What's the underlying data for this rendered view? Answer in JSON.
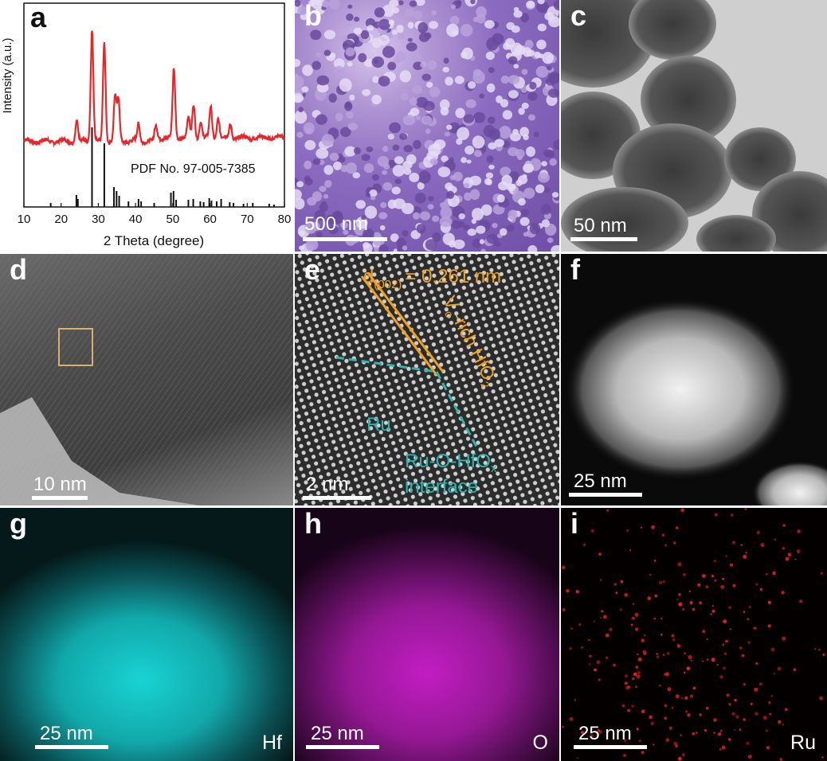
{
  "panels": {
    "a": {
      "label": "a"
    },
    "b": {
      "label": "b",
      "scale": "500 nm"
    },
    "c": {
      "label": "c",
      "scale": "50 nm"
    },
    "d": {
      "label": "d",
      "scale": "10 nm"
    },
    "e": {
      "label": "e",
      "scale": "2 nm",
      "d_main": "d",
      "d_sub": "(002)",
      "d_value": "= 0.261 nm",
      "vo_main": "V",
      "vo_sub": "o",
      "vo_rest": "-rich HfO",
      "vo_sub2": "2",
      "ru": "Ru",
      "iface_line1_main": "Ru-O-HfO",
      "iface_line1_sub": "x",
      "iface_line2": "interface"
    },
    "f": {
      "label": "f",
      "scale": "25 nm"
    },
    "g": {
      "label": "g",
      "scale": "25 nm",
      "element": "Hf"
    },
    "h": {
      "label": "h",
      "scale": "25 nm",
      "element": "O"
    },
    "i": {
      "label": "i",
      "scale": "25 nm",
      "element": "Ru"
    }
  },
  "colors": {
    "xrd_curve": "#e8262a",
    "hf_map": "#19d3d3",
    "o_map": "#d11fd1",
    "ru_map": "#e02020",
    "fringe": "#f0a020",
    "interface": "#2ab5b0",
    "box": "#d8b070"
  },
  "chart_data": {
    "type": "line",
    "xlabel": "2 Theta (degree)",
    "ylabel": "Intensity (a.u.)",
    "xlim": [
      10,
      80
    ],
    "xticks": [
      "10",
      "20",
      "30",
      "40",
      "50",
      "60",
      "70",
      "80"
    ],
    "annotation": "PDF No. 97-005-7385",
    "peaks": [
      {
        "x": 24.2,
        "h": 0.18
      },
      {
        "x": 28.3,
        "h": 1.0
      },
      {
        "x": 31.6,
        "h": 0.88
      },
      {
        "x": 34.5,
        "h": 0.4
      },
      {
        "x": 35.4,
        "h": 0.36
      },
      {
        "x": 40.8,
        "h": 0.15
      },
      {
        "x": 45.5,
        "h": 0.1
      },
      {
        "x": 50.3,
        "h": 0.62
      },
      {
        "x": 54.2,
        "h": 0.18
      },
      {
        "x": 55.6,
        "h": 0.3
      },
      {
        "x": 57.5,
        "h": 0.15
      },
      {
        "x": 60.2,
        "h": 0.28
      },
      {
        "x": 62.2,
        "h": 0.18
      },
      {
        "x": 65.5,
        "h": 0.12
      }
    ],
    "reference_sticks": [
      {
        "x": 17.2,
        "h": 0.05
      },
      {
        "x": 24.1,
        "h": 0.15
      },
      {
        "x": 24.5,
        "h": 0.1
      },
      {
        "x": 28.3,
        "h": 1.0
      },
      {
        "x": 31.6,
        "h": 0.8
      },
      {
        "x": 34.2,
        "h": 0.25
      },
      {
        "x": 34.9,
        "h": 0.2
      },
      {
        "x": 35.6,
        "h": 0.14
      },
      {
        "x": 38.1,
        "h": 0.07
      },
      {
        "x": 40.8,
        "h": 0.1
      },
      {
        "x": 41.5,
        "h": 0.07
      },
      {
        "x": 45.0,
        "h": 0.05
      },
      {
        "x": 49.5,
        "h": 0.18
      },
      {
        "x": 50.2,
        "h": 0.2
      },
      {
        "x": 50.9,
        "h": 0.09
      },
      {
        "x": 54.2,
        "h": 0.09
      },
      {
        "x": 55.5,
        "h": 0.1
      },
      {
        "x": 57.4,
        "h": 0.07
      },
      {
        "x": 58.3,
        "h": 0.06
      },
      {
        "x": 59.8,
        "h": 0.11
      },
      {
        "x": 60.4,
        "h": 0.08
      },
      {
        "x": 61.8,
        "h": 0.07
      },
      {
        "x": 63.0,
        "h": 0.1
      },
      {
        "x": 65.3,
        "h": 0.06
      },
      {
        "x": 66.3,
        "h": 0.05
      },
      {
        "x": 69.0,
        "h": 0.04
      },
      {
        "x": 71.5,
        "h": 0.05
      },
      {
        "x": 75.9,
        "h": 0.04
      },
      {
        "x": 77.2,
        "h": 0.03
      }
    ]
  }
}
